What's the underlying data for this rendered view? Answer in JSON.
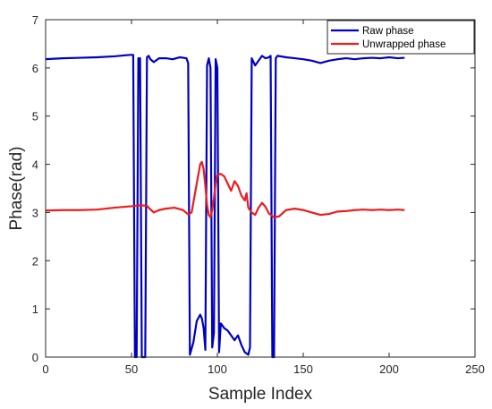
{
  "chart_data": {
    "type": "line",
    "title": "",
    "xlabel": "Sample Index",
    "ylabel": "Phase(rad)",
    "xlim": [
      0,
      250
    ],
    "ylim": [
      0,
      7
    ],
    "xticks": [
      "0",
      "50",
      "100",
      "150",
      "200",
      "250"
    ],
    "yticks": [
      "0",
      "1",
      "2",
      "3",
      "4",
      "5",
      "6",
      "7"
    ],
    "grid": false,
    "legend_position": "top-right",
    "series": [
      {
        "name": "Raw phase",
        "color": "#0000c0",
        "points": [
          [
            0,
            6.18
          ],
          [
            10,
            6.2
          ],
          [
            20,
            6.21
          ],
          [
            30,
            6.22
          ],
          [
            40,
            6.24
          ],
          [
            49,
            6.27
          ],
          [
            51,
            6.27
          ],
          [
            52,
            0.0
          ],
          [
            53,
            0.0
          ],
          [
            54,
            6.2
          ],
          [
            55,
            6.2
          ],
          [
            56,
            0.0
          ],
          [
            58,
            0.0
          ],
          [
            59,
            6.22
          ],
          [
            60,
            6.25
          ],
          [
            61,
            6.18
          ],
          [
            63,
            6.12
          ],
          [
            66,
            6.2
          ],
          [
            70,
            6.2
          ],
          [
            74,
            6.18
          ],
          [
            78,
            6.22
          ],
          [
            82,
            6.2
          ],
          [
            83,
            6.1
          ],
          [
            84,
            0.05
          ],
          [
            86,
            0.3
          ],
          [
            88,
            0.75
          ],
          [
            90,
            0.88
          ],
          [
            91,
            0.8
          ],
          [
            92,
            0.6
          ],
          [
            93,
            0.15
          ],
          [
            94,
            6.05
          ],
          [
            95,
            6.2
          ],
          [
            96,
            6.0
          ],
          [
            97,
            0.2
          ],
          [
            98,
            0.5
          ],
          [
            99,
            6.18
          ],
          [
            100,
            6.0
          ],
          [
            101,
            0.1
          ],
          [
            102,
            0.7
          ],
          [
            104,
            0.6
          ],
          [
            106,
            0.55
          ],
          [
            108,
            0.45
          ],
          [
            110,
            0.35
          ],
          [
            112,
            0.45
          ],
          [
            114,
            0.25
          ],
          [
            116,
            0.1
          ],
          [
            118,
            0.05
          ],
          [
            119,
            0.2
          ],
          [
            120,
            6.2
          ],
          [
            122,
            6.05
          ],
          [
            124,
            6.15
          ],
          [
            126,
            6.25
          ],
          [
            128,
            6.2
          ],
          [
            130,
            6.22
          ],
          [
            131,
            6.25
          ],
          [
            132,
            0.0
          ],
          [
            133,
            0.0
          ],
          [
            134,
            6.2
          ],
          [
            135,
            6.25
          ],
          [
            140,
            6.22
          ],
          [
            145,
            6.2
          ],
          [
            150,
            6.18
          ],
          [
            155,
            6.15
          ],
          [
            160,
            6.1
          ],
          [
            165,
            6.15
          ],
          [
            170,
            6.18
          ],
          [
            175,
            6.2
          ],
          [
            180,
            6.18
          ],
          [
            185,
            6.2
          ],
          [
            190,
            6.21
          ],
          [
            195,
            6.2
          ],
          [
            200,
            6.22
          ],
          [
            205,
            6.2
          ],
          [
            209,
            6.21
          ]
        ]
      },
      {
        "name": "Unwrapped phase",
        "color": "#ee1c1c",
        "points": [
          [
            0,
            3.04
          ],
          [
            10,
            3.05
          ],
          [
            20,
            3.05
          ],
          [
            30,
            3.06
          ],
          [
            40,
            3.1
          ],
          [
            50,
            3.13
          ],
          [
            55,
            3.15
          ],
          [
            59,
            3.14
          ],
          [
            60,
            3.1
          ],
          [
            63,
            3.0
          ],
          [
            66,
            3.05
          ],
          [
            70,
            3.08
          ],
          [
            75,
            3.1
          ],
          [
            80,
            3.05
          ],
          [
            83,
            2.96
          ],
          [
            85,
            3.0
          ],
          [
            86,
            3.2
          ],
          [
            88,
            3.6
          ],
          [
            90,
            4.0
          ],
          [
            91,
            4.05
          ],
          [
            92,
            3.9
          ],
          [
            93,
            3.55
          ],
          [
            94,
            3.15
          ],
          [
            95,
            2.95
          ],
          [
            96,
            2.9
          ],
          [
            97,
            3.05
          ],
          [
            98,
            3.3
          ],
          [
            99,
            3.6
          ],
          [
            100,
            3.78
          ],
          [
            102,
            3.8
          ],
          [
            104,
            3.75
          ],
          [
            106,
            3.6
          ],
          [
            108,
            3.45
          ],
          [
            110,
            3.65
          ],
          [
            112,
            3.55
          ],
          [
            114,
            3.35
          ],
          [
            116,
            3.25
          ],
          [
            117,
            3.4
          ],
          [
            118,
            3.1
          ],
          [
            120,
            3.0
          ],
          [
            122,
            2.95
          ],
          [
            124,
            3.1
          ],
          [
            126,
            3.2
          ],
          [
            128,
            3.12
          ],
          [
            130,
            2.98
          ],
          [
            133,
            2.9
          ],
          [
            136,
            2.92
          ],
          [
            140,
            3.05
          ],
          [
            145,
            3.08
          ],
          [
            150,
            3.05
          ],
          [
            155,
            3.0
          ],
          [
            160,
            2.95
          ],
          [
            165,
            2.97
          ],
          [
            170,
            3.02
          ],
          [
            175,
            3.03
          ],
          [
            180,
            3.05
          ],
          [
            185,
            3.06
          ],
          [
            190,
            3.05
          ],
          [
            195,
            3.06
          ],
          [
            200,
            3.05
          ],
          [
            205,
            3.06
          ],
          [
            209,
            3.05
          ]
        ]
      }
    ]
  }
}
